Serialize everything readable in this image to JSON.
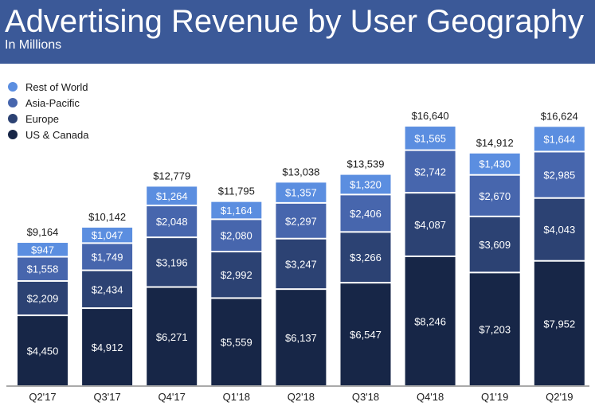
{
  "header": {
    "title": "Advertising Revenue by User Geography",
    "subtitle": "In Millions"
  },
  "colors": {
    "banner": "#3b5998",
    "rest_of_world": "#5b8ee0",
    "asia_pacific": "#4766ad",
    "europe": "#2c4273",
    "us_canada": "#172647"
  },
  "chart_data": {
    "type": "bar",
    "stacked": true,
    "title": "Advertising Revenue by User Geography",
    "subtitle": "In Millions",
    "xlabel": "",
    "ylabel": "",
    "grid": false,
    "legend_position": "top-left",
    "categories": [
      "Q2'17",
      "Q3'17",
      "Q4'17",
      "Q1'18",
      "Q2'18",
      "Q3'18",
      "Q4'18",
      "Q1'19",
      "Q2'19"
    ],
    "totals": [
      9164,
      10142,
      12779,
      11795,
      13038,
      13539,
      16640,
      14912,
      16624
    ],
    "total_labels": [
      "$9,164",
      "$10,142",
      "$12,779",
      "$11,795",
      "$13,038",
      "$13,539",
      "$16,640",
      "$14,912",
      "$16,624"
    ],
    "series": [
      {
        "name": "US & Canada",
        "color": "#172647",
        "values": [
          4450,
          4912,
          6271,
          5559,
          6137,
          6547,
          8246,
          7203,
          7952
        ],
        "labels": [
          "$4,450",
          "$4,912",
          "$6,271",
          "$5,559",
          "$6,137",
          "$6,547",
          "$8,246",
          "$7,203",
          "$7,952"
        ]
      },
      {
        "name": "Europe",
        "color": "#2c4273",
        "values": [
          2209,
          2434,
          3196,
          2992,
          3247,
          3266,
          4087,
          3609,
          4043
        ],
        "labels": [
          "$2,209",
          "$2,434",
          "$3,196",
          "$2,992",
          "$3,247",
          "$3,266",
          "$4,087",
          "$3,609",
          "$4,043"
        ]
      },
      {
        "name": "Asia-Pacific",
        "color": "#4766ad",
        "values": [
          1558,
          1749,
          2048,
          2080,
          2297,
          2406,
          2742,
          2670,
          2985
        ],
        "labels": [
          "$1,558",
          "$1,749",
          "$2,048",
          "$2,080",
          "$2,297",
          "$2,406",
          "$2,742",
          "$2,670",
          "$2,985"
        ]
      },
      {
        "name": "Rest of World",
        "color": "#5b8ee0",
        "values": [
          947,
          1047,
          1264,
          1164,
          1357,
          1320,
          1565,
          1430,
          1644
        ],
        "labels": [
          "$947",
          "$1,047",
          "$1,264",
          "$1,164",
          "$1,357",
          "$1,320",
          "$1,565",
          "$1,430",
          "$1,644"
        ]
      }
    ],
    "legend": [
      "Rest of World",
      "Asia-Pacific",
      "Europe",
      "US & Canada"
    ],
    "ylim": [
      0,
      17000
    ]
  }
}
